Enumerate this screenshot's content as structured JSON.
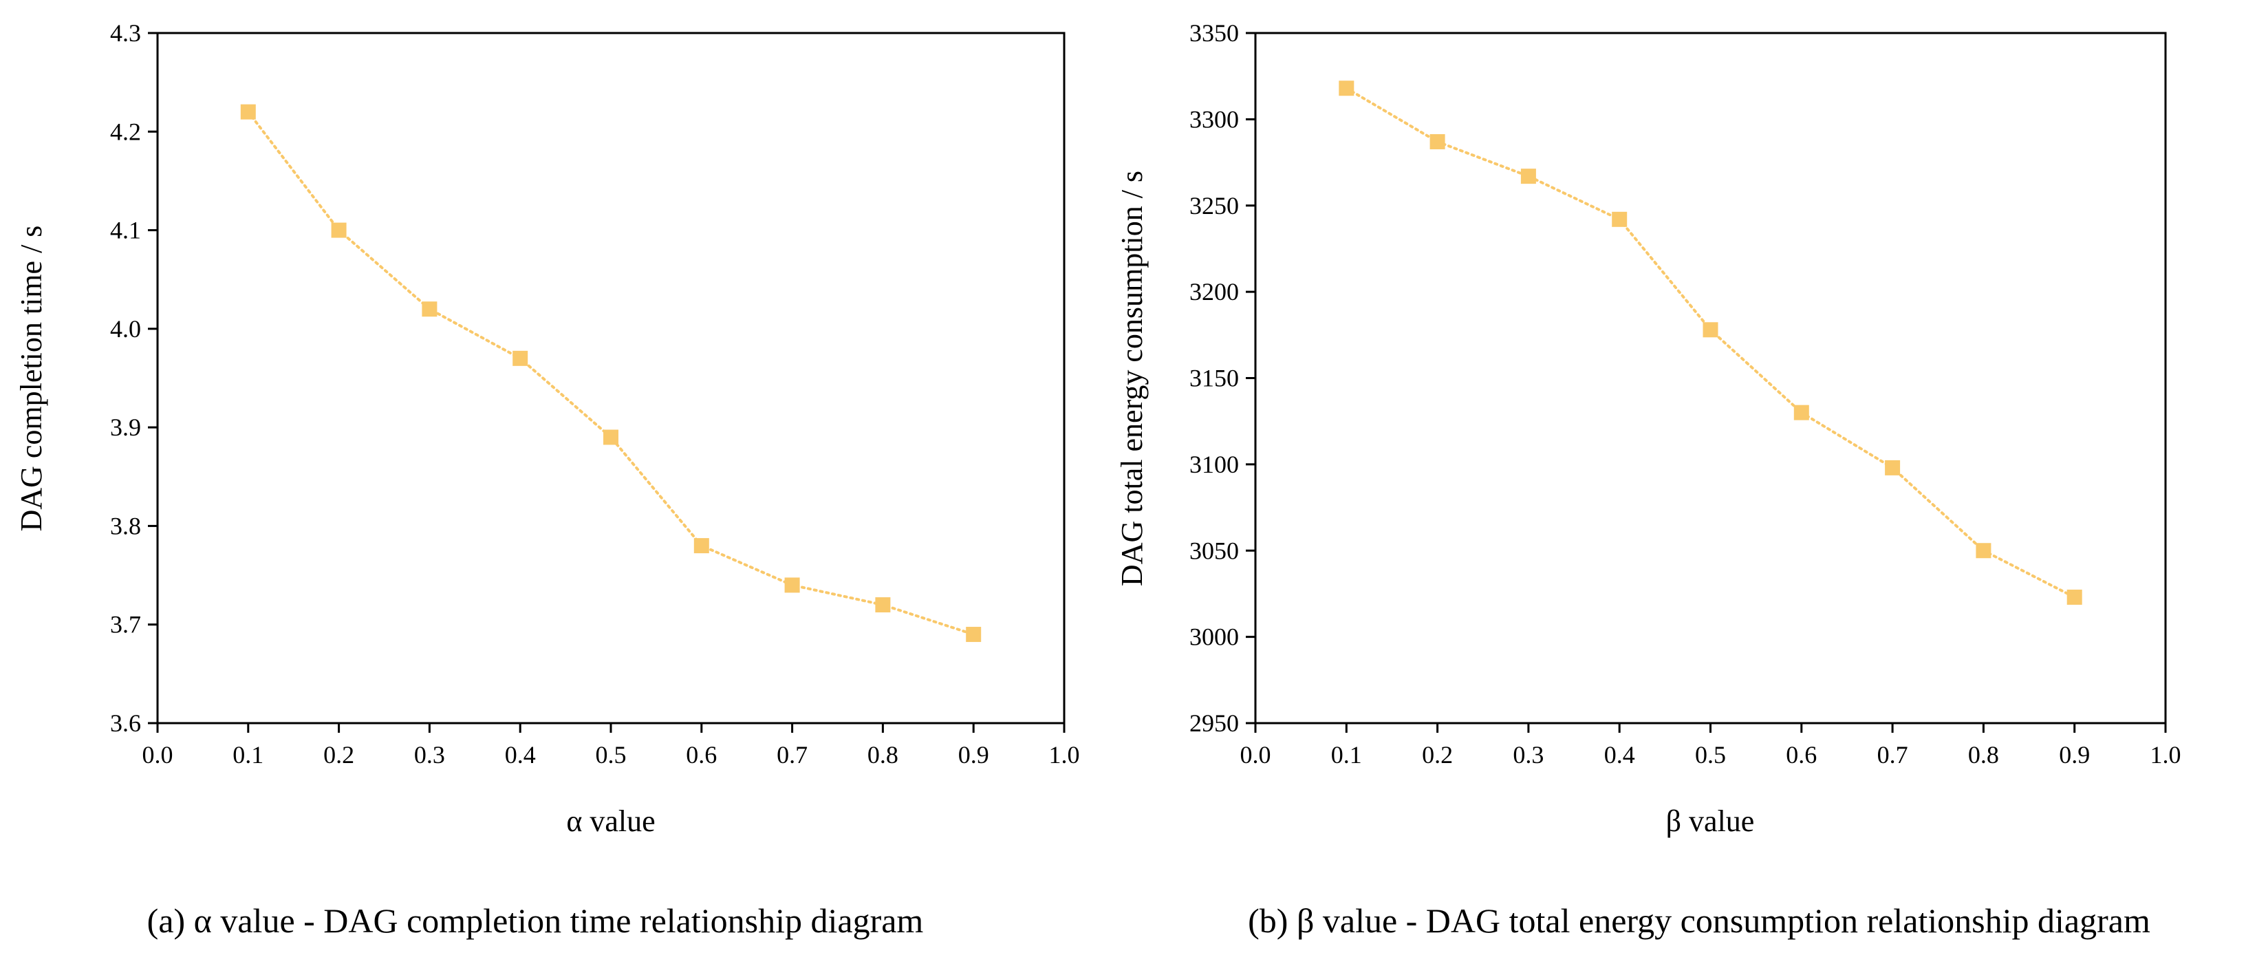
{
  "chart_data": [
    {
      "type": "line",
      "title": "",
      "caption": "(a) α value - DAG completion time relationship diagram",
      "xlabel": "α value",
      "ylabel": "DAG completion time / s",
      "xlim": [
        0.0,
        1.0
      ],
      "ylim": [
        3.6,
        4.3
      ],
      "xticks": [
        "0.0",
        "0.1",
        "0.2",
        "0.3",
        "0.4",
        "0.5",
        "0.6",
        "0.7",
        "0.8",
        "0.9",
        "1.0"
      ],
      "yticks": [
        "3.6",
        "3.7",
        "3.8",
        "3.9",
        "4.0",
        "4.1",
        "4.2",
        "4.3"
      ],
      "grid": false,
      "series": [
        {
          "name": "DAG completion time",
          "color": "#F9C86A",
          "marker": "square",
          "linestyle": "dotted",
          "x": [
            0.1,
            0.2,
            0.3,
            0.4,
            0.5,
            0.6,
            0.7,
            0.8,
            0.9
          ],
          "values": [
            4.22,
            4.1,
            4.02,
            3.97,
            3.89,
            3.78,
            3.74,
            3.72,
            3.69
          ]
        }
      ]
    },
    {
      "type": "line",
      "title": "",
      "caption": "(b) β value - DAG total energy consumption relationship diagram",
      "xlabel": "β value",
      "ylabel": "DAG total energy consumption / s",
      "xlim": [
        0.0,
        1.0
      ],
      "ylim": [
        2950,
        3350
      ],
      "xticks": [
        "0.0",
        "0.1",
        "0.2",
        "0.3",
        "0.4",
        "0.5",
        "0.6",
        "0.7",
        "0.8",
        "0.9",
        "1.0"
      ],
      "yticks": [
        "2950",
        "3000",
        "3050",
        "3100",
        "3150",
        "3200",
        "3250",
        "3300",
        "3350"
      ],
      "grid": false,
      "series": [
        {
          "name": "DAG total energy consumption",
          "color": "#F9C86A",
          "marker": "square",
          "linestyle": "dotted",
          "x": [
            0.1,
            0.2,
            0.3,
            0.4,
            0.5,
            0.6,
            0.7,
            0.8,
            0.9
          ],
          "values": [
            3318,
            3287,
            3267,
            3242,
            3178,
            3130,
            3098,
            3050,
            3023
          ]
        }
      ]
    }
  ]
}
